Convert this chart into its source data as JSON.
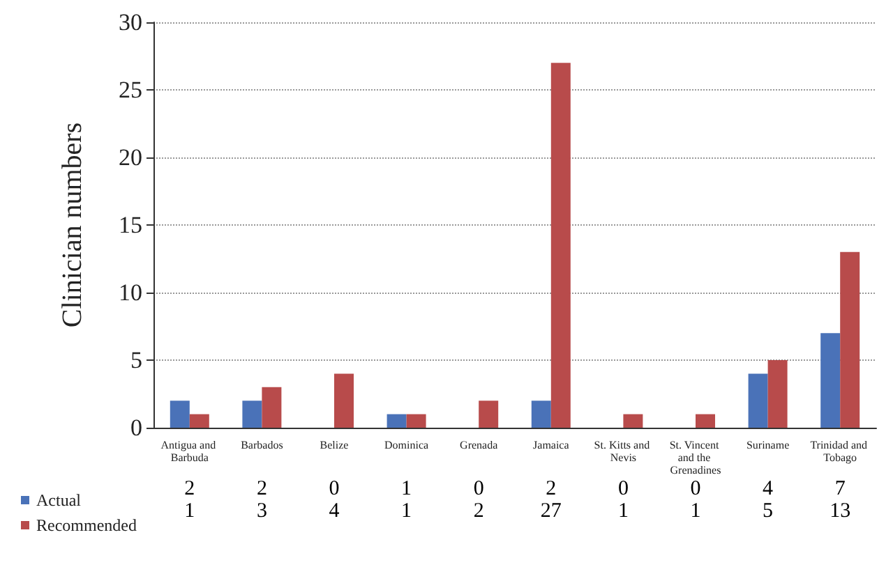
{
  "chart_data": {
    "type": "bar",
    "ylabel": "Clinician numbers",
    "categories": [
      "Antigua and Barbuda",
      "Barbados",
      "Belize",
      "Dominica",
      "Grenada",
      "Jamaica",
      "St. Kitts and Nevis",
      "St. Vincent and the Grenadines",
      "Suriname",
      "Trinidad and Tobago"
    ],
    "series": [
      {
        "name": "Actual",
        "color": "#4a72b8",
        "values": [
          2,
          2,
          0,
          1,
          0,
          2,
          0,
          0,
          4,
          7
        ]
      },
      {
        "name": "Recommended",
        "color": "#b84b4b",
        "values": [
          1,
          3,
          4,
          1,
          2,
          27,
          1,
          1,
          5,
          13
        ]
      }
    ],
    "ylim": [
      0,
      30
    ],
    "yticks": [
      0,
      5,
      10,
      15,
      20,
      25,
      30
    ],
    "grid": "y",
    "legend": "bottom",
    "data_labels": true
  }
}
